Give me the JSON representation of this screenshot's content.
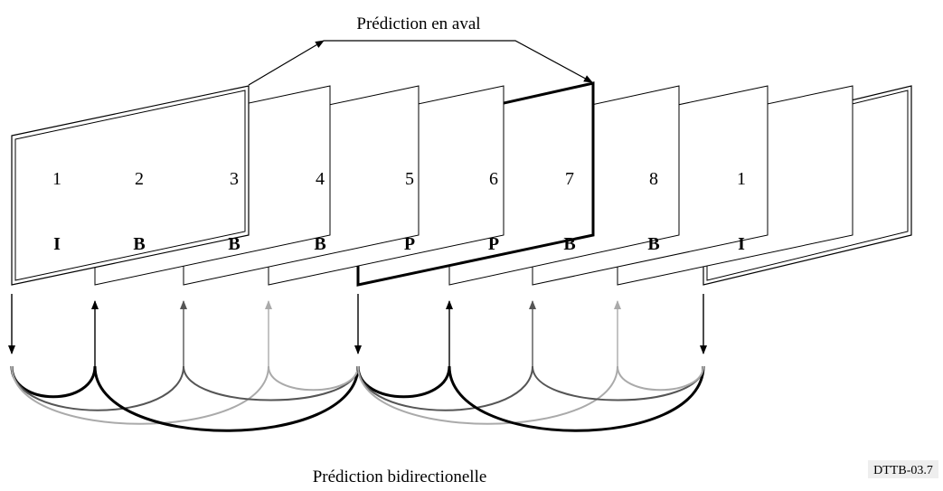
{
  "title_top": "Prédiction en aval",
  "title_bottom": "Prédiction bidirectionelle",
  "figure_ref": "DTTB-03.7",
  "frames": [
    {
      "number": "1",
      "type": "I"
    },
    {
      "number": "2",
      "type": "B"
    },
    {
      "number": "3",
      "type": "B"
    },
    {
      "number": "4",
      "type": "B"
    },
    {
      "number": "5",
      "type": "P"
    },
    {
      "number": "6",
      "type": "P"
    },
    {
      "number": "7",
      "type": "B"
    },
    {
      "number": "8",
      "type": "B"
    },
    {
      "number": "1",
      "type": "I"
    }
  ],
  "colors": {
    "black": "#000000",
    "dark_gray": "#555555",
    "light_gray": "#aaaaaa"
  }
}
